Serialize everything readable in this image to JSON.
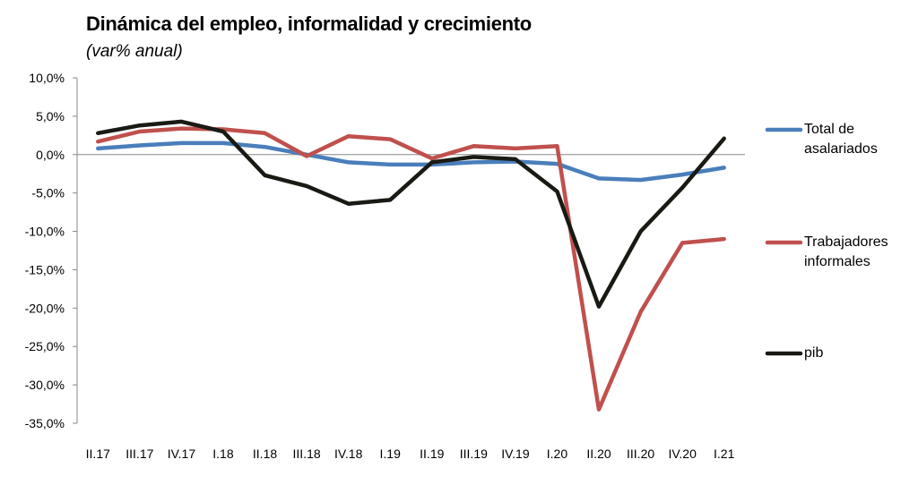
{
  "chart_data": {
    "type": "line",
    "title": "Dinámica del empleo, informalidad y crecimiento",
    "subtitle": "(var% anual)",
    "categories": [
      "II.17",
      "III.17",
      "IV.17",
      "I.18",
      "II.18",
      "III.18",
      "IV.18",
      "I.19",
      "II.19",
      "III.19",
      "IV.19",
      "I.20",
      "II.20",
      "III.20",
      "IV.20",
      "I.21"
    ],
    "y_ticks": [
      "10,0%",
      "5,0%",
      "0,0%",
      "-5,0%",
      "-10,0%",
      "-15,0%",
      "-20,0%",
      "-25,0%",
      "-30,0%",
      "-35,0%"
    ],
    "ylim": [
      -35,
      10
    ],
    "grid": false,
    "legend_position": "right",
    "series": [
      {
        "name": "Total de asalariados",
        "color": "#4a7ebb",
        "values": [
          0.8,
          1.2,
          1.5,
          1.5,
          1.0,
          0.0,
          -1.0,
          -1.3,
          -1.3,
          -1.0,
          -0.9,
          -1.2,
          -3.1,
          -3.3,
          -2.6,
          -1.7
        ]
      },
      {
        "name": "Trabajadores informales",
        "color": "#c0504d",
        "values": [
          1.7,
          3.0,
          3.4,
          3.3,
          2.8,
          -0.2,
          2.4,
          2.0,
          -0.5,
          1.1,
          0.8,
          1.1,
          -33.2,
          -20.5,
          -11.5,
          -11.0
        ]
      },
      {
        "name": "pib",
        "color": "#1a1a14",
        "values": [
          2.8,
          3.8,
          4.3,
          3.0,
          -2.7,
          -4.1,
          -6.4,
          -5.9,
          -1.0,
          -0.3,
          -0.6,
          -4.8,
          -19.8,
          -10.0,
          -4.3,
          2.1
        ]
      }
    ]
  }
}
